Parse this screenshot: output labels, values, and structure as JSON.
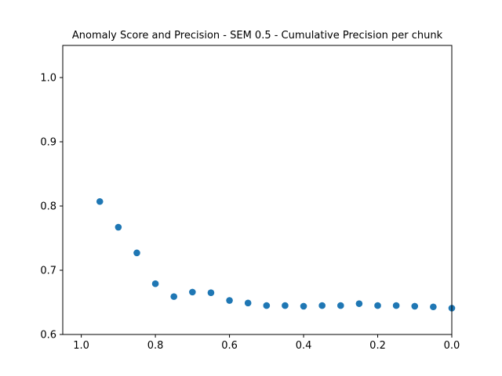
{
  "chart_data": {
    "type": "scatter",
    "title": "Anomaly Score and Precision - SEM 0.5 - Cumulative Precision per chunk",
    "xlabel": "",
    "ylabel": "",
    "xlim": [
      1.05,
      0.0
    ],
    "ylim": [
      0.6,
      1.05
    ],
    "x_inverted": true,
    "grid": false,
    "x_ticks": [
      {
        "value": 1.0,
        "label": "1.0"
      },
      {
        "value": 0.8,
        "label": "0.8"
      },
      {
        "value": 0.6,
        "label": "0.6"
      },
      {
        "value": 0.4,
        "label": "0.4"
      },
      {
        "value": 0.2,
        "label": "0.2"
      },
      {
        "value": 0.0,
        "label": "0.0"
      }
    ],
    "y_ticks": [
      {
        "value": 0.6,
        "label": "0.6"
      },
      {
        "value": 0.7,
        "label": "0.7"
      },
      {
        "value": 0.8,
        "label": "0.8"
      },
      {
        "value": 0.9,
        "label": "0.9"
      },
      {
        "value": 1.0,
        "label": "1.0"
      }
    ],
    "marker_color": "#1f77b4",
    "series": [
      {
        "x": [
          0.95,
          0.9,
          0.85,
          0.8,
          0.75,
          0.7,
          0.65,
          0.6,
          0.55,
          0.5,
          0.45,
          0.4,
          0.35,
          0.3,
          0.25,
          0.2,
          0.15,
          0.1,
          0.05,
          0.0
        ],
        "y": [
          0.807,
          0.767,
          0.727,
          0.679,
          0.659,
          0.666,
          0.665,
          0.653,
          0.649,
          0.645,
          0.645,
          0.644,
          0.645,
          0.645,
          0.648,
          0.645,
          0.645,
          0.644,
          0.643,
          0.641
        ]
      }
    ]
  }
}
